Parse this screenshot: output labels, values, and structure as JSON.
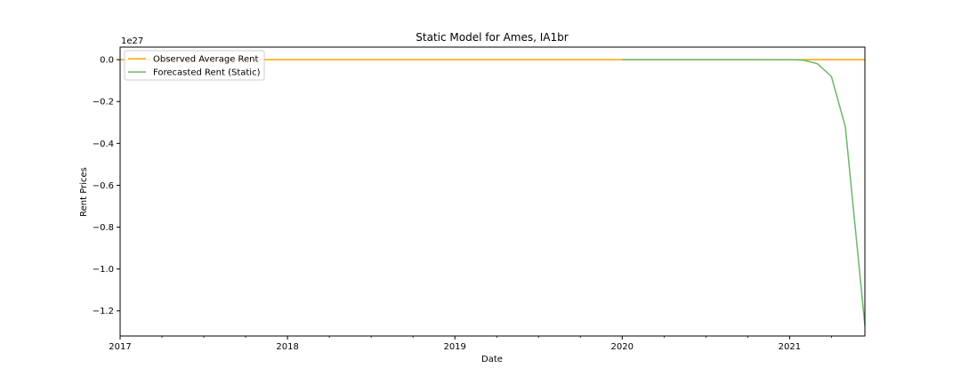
{
  "chart_data": {
    "type": "line",
    "title": "Static Model for Ames, IA1br",
    "xlabel": "Date",
    "ylabel": "Rent Prices",
    "y_offset_label": "1e27",
    "y_scale_exponent": 27,
    "xlim": [
      2017.0,
      2021.45
    ],
    "ylim": [
      -1.32,
      0.06
    ],
    "x_ticks": [
      {
        "value": 2017,
        "label": "2017"
      },
      {
        "value": 2018,
        "label": "2018"
      },
      {
        "value": 2019,
        "label": "2019"
      },
      {
        "value": 2020,
        "label": "2020"
      },
      {
        "value": 2021,
        "label": "2021"
      }
    ],
    "x_minor_ticks": [
      2017.25,
      2017.5,
      2017.75,
      2018.25,
      2018.5,
      2018.75,
      2019.25,
      2019.5,
      2019.75,
      2020.25,
      2020.5,
      2020.75,
      2021.25
    ],
    "y_ticks": [
      {
        "value": 0.0,
        "label": "0.0"
      },
      {
        "value": -0.2,
        "label": "−0.2"
      },
      {
        "value": -0.4,
        "label": "−0.4"
      },
      {
        "value": -0.6,
        "label": "−0.6"
      },
      {
        "value": -0.8,
        "label": "−0.8"
      },
      {
        "value": -1.0,
        "label": "−1.0"
      },
      {
        "value": -1.2,
        "label": "−1.2"
      }
    ],
    "grid": false,
    "legend_position": "top-left",
    "series": [
      {
        "name": "Observed Average Rent",
        "color": "#ffa500",
        "x": [
          2017.0,
          2021.45
        ],
        "y": [
          0.0,
          0.0
        ]
      },
      {
        "name": "Forecasted Rent (Static)",
        "color": "#6ab86a",
        "x": [
          2020.0,
          2020.25,
          2020.5,
          2020.75,
          2021.0,
          2021.083,
          2021.167,
          2021.25,
          2021.333,
          2021.45
        ],
        "y": [
          0.0,
          0.0,
          0.0,
          0.0,
          -0.0005,
          -0.002,
          -0.02,
          -0.08,
          -0.32,
          -1.27
        ]
      }
    ]
  }
}
